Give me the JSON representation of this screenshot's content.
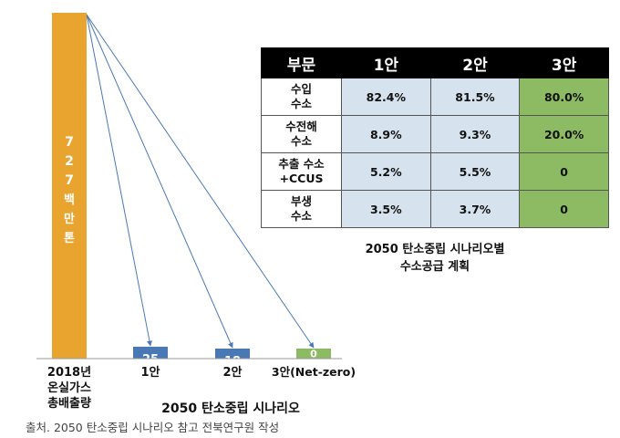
{
  "chart_data": {
    "type": "bar",
    "categories": [
      "2018년 온실가스 총배출량",
      "1안",
      "2안",
      "3안(Net-zero)"
    ],
    "category_lines": [
      [
        "2018년",
        "온실가스",
        "총배출량"
      ],
      [
        "1안"
      ],
      [
        "2안"
      ],
      [
        "3안(Net-zero)"
      ]
    ],
    "values": [
      727,
      25,
      18,
      0
    ],
    "unit": "백만톤",
    "bar_labels": [
      "727",
      "25",
      "18",
      "0"
    ],
    "group_label": "2050 탄소중립 시나리오",
    "colors": [
      "#e9a42f",
      "#4a78b5",
      "#4a78b5",
      "#8dbb63"
    ],
    "arrow_color": "#4a78b5",
    "arrows_from_first_bar": true
  },
  "table": {
    "headers": [
      "부문",
      "1안",
      "2안",
      "3안"
    ],
    "rows": [
      {
        "label": [
          "수입",
          "수소"
        ],
        "values": [
          "82.4%",
          "81.5%",
          "80.0%"
        ]
      },
      {
        "label": [
          "수전해",
          "수소"
        ],
        "values": [
          "8.9%",
          "9.3%",
          "20.0%"
        ]
      },
      {
        "label": [
          "추출 수소",
          "+CCUS"
        ],
        "values": [
          "5.2%",
          "5.5%",
          "0"
        ]
      },
      {
        "label": [
          "부생",
          "수소"
        ],
        "values": [
          "3.5%",
          "3.7%",
          "0"
        ]
      }
    ],
    "caption": [
      "2050 탄소중립 시나리오별",
      "수소공급 계획"
    ]
  },
  "source": "출처. 2050 탄소중립 시나리오 참고 전북연구원 작성"
}
